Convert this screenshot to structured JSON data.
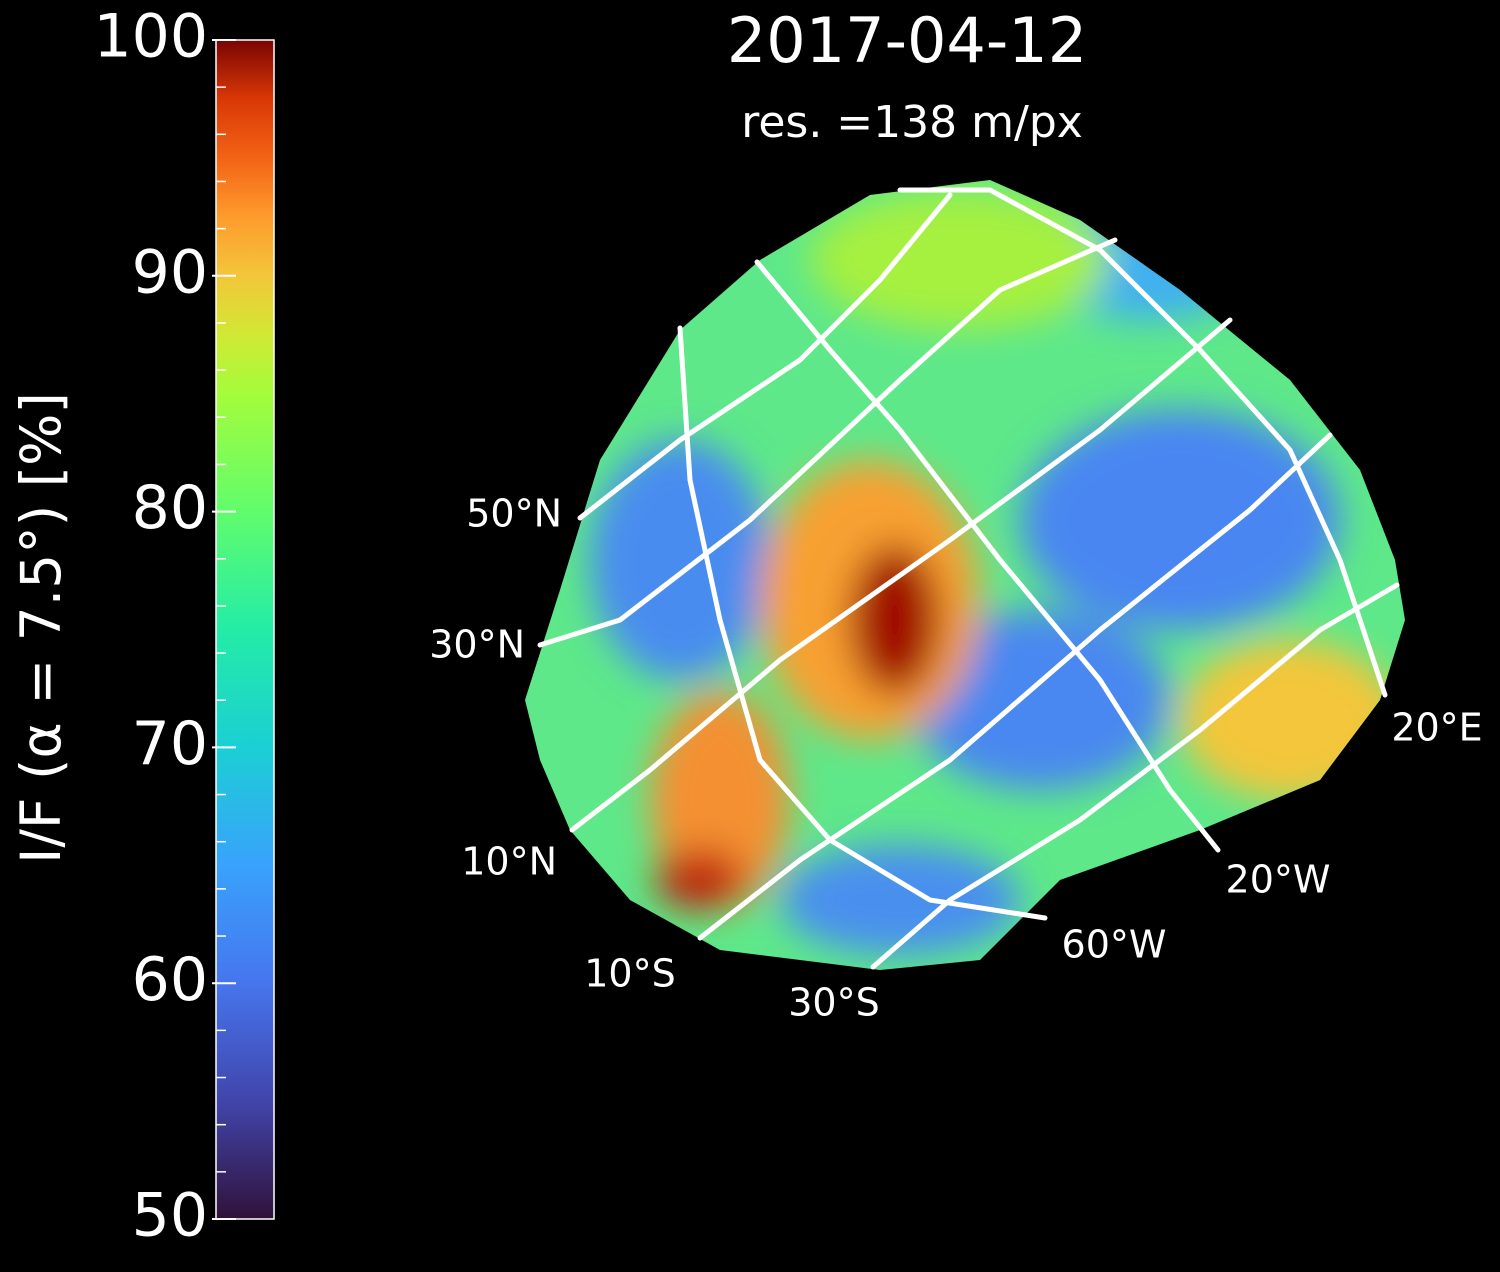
{
  "chart_data": {
    "type": "image",
    "title": "2017-04-12",
    "subtitle": "res. =138 m/px",
    "colorbar_label": "I/F (α = 7.5°) [%]",
    "ylim": [
      50,
      100
    ],
    "yticks": [
      50,
      60,
      70,
      80,
      90,
      100
    ],
    "yminorticks": [
      52,
      54,
      56,
      58,
      62,
      64,
      66,
      68,
      72,
      74,
      76,
      78,
      82,
      84,
      86,
      88,
      92,
      94,
      96,
      98
    ],
    "colormap": "turbo",
    "grid_labels": [
      "50°N",
      "30°N",
      "10°N",
      "10°S",
      "30°S",
      "60°W",
      "20°W",
      "20°E"
    ]
  }
}
